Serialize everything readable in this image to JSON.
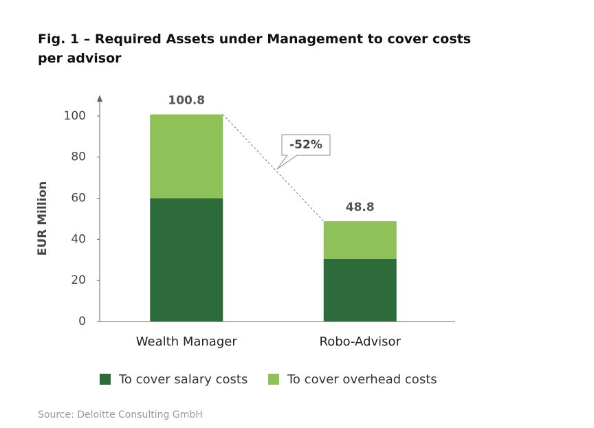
{
  "chart_data": {
    "type": "bar",
    "stacked": true,
    "title": "Fig. 1 – Required Assets under Management to cover costs per advisor",
    "ylabel": "EUR Million",
    "categories": [
      "Wealth Manager",
      "Robo-Advisor"
    ],
    "series": [
      {
        "name": "To cover salary costs",
        "color": "#2e6b3a",
        "values": [
          60,
          30.5
        ]
      },
      {
        "name": "To cover overhead costs",
        "color": "#8fc159",
        "values": [
          40.8,
          18.3
        ]
      }
    ],
    "totals": [
      100.8,
      48.8
    ],
    "annotation": "-52%",
    "ylim": [
      0,
      110
    ],
    "yticks": [
      0,
      20,
      40,
      60,
      80,
      100
    ],
    "source": "Source: Deloitte Consulting GmbH"
  }
}
